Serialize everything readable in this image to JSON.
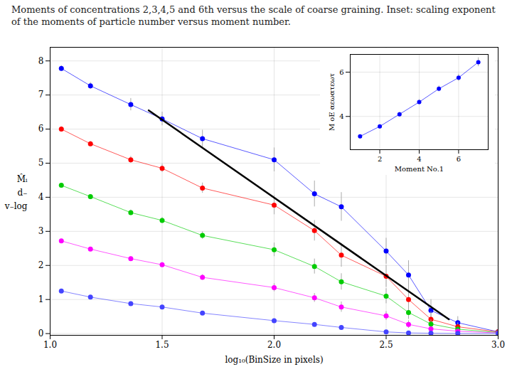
{
  "chart_data": [
    {
      "type": "line",
      "title": "Moments of concentrations 2,3,4,5 and 6th versus the scale of coarse graining. Inset: scaling exponent of the moments of particle number versus moment number.",
      "xlabel": "log₁₀(BinSize in pixels)",
      "ylabel": "M̂ᵢ\nd₋\nv₋log",
      "x": [
        1.05,
        1.18,
        1.36,
        1.5,
        1.68,
        2.0,
        2.18,
        2.3,
        2.5,
        2.6,
        2.7,
        2.82,
        3.0
      ],
      "xlim": [
        1.0,
        3.0
      ],
      "ylim": [
        -0.05,
        8.4
      ],
      "xticks": [
        {
          "value": 1.0,
          "label": "1.0"
        },
        1.5,
        {
          "value": 2.0,
          "label": "2.0"
        },
        2.5,
        {
          "value": 3.0,
          "label": "3.0"
        }
      ],
      "yticks": [
        0,
        1,
        2,
        3,
        4,
        5,
        6,
        7,
        8
      ],
      "grid": true,
      "series": [
        {
          "color": "#0000ff",
          "marker": "circle",
          "line_style": "solid",
          "values": [
            7.78,
            7.27,
            6.72,
            6.3,
            5.72,
            5.1,
            4.1,
            3.72,
            2.42,
            1.72,
            0.68,
            0.32,
            0.05
          ],
          "yerr": [
            0.08,
            0.1,
            0.18,
            0.2,
            0.25,
            0.35,
            0.38,
            0.42,
            0.38,
            0.42,
            0.32,
            0.18,
            0.1
          ]
        },
        {
          "color": "#ff0000",
          "marker": "circle",
          "line_style": "solid",
          "values": [
            6.0,
            5.57,
            5.1,
            4.85,
            4.27,
            3.77,
            3.02,
            2.3,
            1.68,
            1.0,
            0.42,
            0.2,
            0.05
          ],
          "yerr": [
            0.07,
            0.07,
            0.1,
            0.12,
            0.15,
            0.28,
            0.3,
            0.35,
            0.32,
            0.32,
            0.22,
            0.12,
            0.07
          ]
        },
        {
          "color": "#00cc00",
          "marker": "circle",
          "line_style": "solid",
          "values": [
            4.35,
            4.02,
            3.55,
            3.32,
            2.88,
            2.46,
            1.97,
            1.52,
            1.1,
            0.62,
            0.28,
            0.13,
            0.03
          ],
          "yerr": [
            0.05,
            0.05,
            0.08,
            0.09,
            0.11,
            0.2,
            0.22,
            0.24,
            0.22,
            0.2,
            0.13,
            0.07,
            0.04
          ]
        },
        {
          "color": "#ff00ff",
          "marker": "circle",
          "line_style": "solid",
          "values": [
            2.72,
            2.48,
            2.2,
            2.02,
            1.65,
            1.35,
            1.05,
            0.78,
            0.52,
            0.27,
            0.14,
            0.07,
            0.02
          ],
          "yerr": [
            0.04,
            0.04,
            0.05,
            0.06,
            0.08,
            0.12,
            0.13,
            0.15,
            0.13,
            0.11,
            0.07,
            0.04,
            0.02
          ]
        },
        {
          "color": "#4444ff",
          "marker": "circle",
          "line_style": "solid",
          "values": [
            1.25,
            1.07,
            0.88,
            0.78,
            0.6,
            0.38,
            0.27,
            0.18,
            0.05,
            0.02,
            0.01,
            0.005,
            0.002
          ],
          "yerr": [
            0.02,
            0.02,
            0.03,
            0.03,
            0.04,
            0.05,
            0.05,
            0.06,
            0.04,
            0.03,
            0.02,
            0.01,
            0.005
          ]
        },
        {
          "color": "#000000",
          "marker": "none",
          "line_style": "solid",
          "x": [
            1.44,
            2.78
          ],
          "values": [
            6.55,
            0.42
          ]
        }
      ]
    },
    {
      "type": "line",
      "xlabel": "Moment No.1",
      "ylabel": "M oE αεωατεωτ",
      "x": [
        1.0,
        2.0,
        3.0,
        4.0,
        5.0,
        6.0,
        7.0
      ],
      "xlim": [
        0.5,
        7.5
      ],
      "ylim": [
        2.5,
        6.8
      ],
      "xticks": [
        2,
        4,
        6
      ],
      "yticks": [
        4,
        6
      ],
      "grid": true,
      "series": [
        {
          "color": "#0000ff",
          "marker": "circle",
          "line_style": "solid",
          "values": [
            3.1,
            3.55,
            4.1,
            4.65,
            5.25,
            5.75,
            6.45
          ],
          "yerr": [
            0.06,
            0.07,
            0.09,
            0.11,
            0.13,
            0.16,
            0.2
          ]
        }
      ]
    }
  ]
}
